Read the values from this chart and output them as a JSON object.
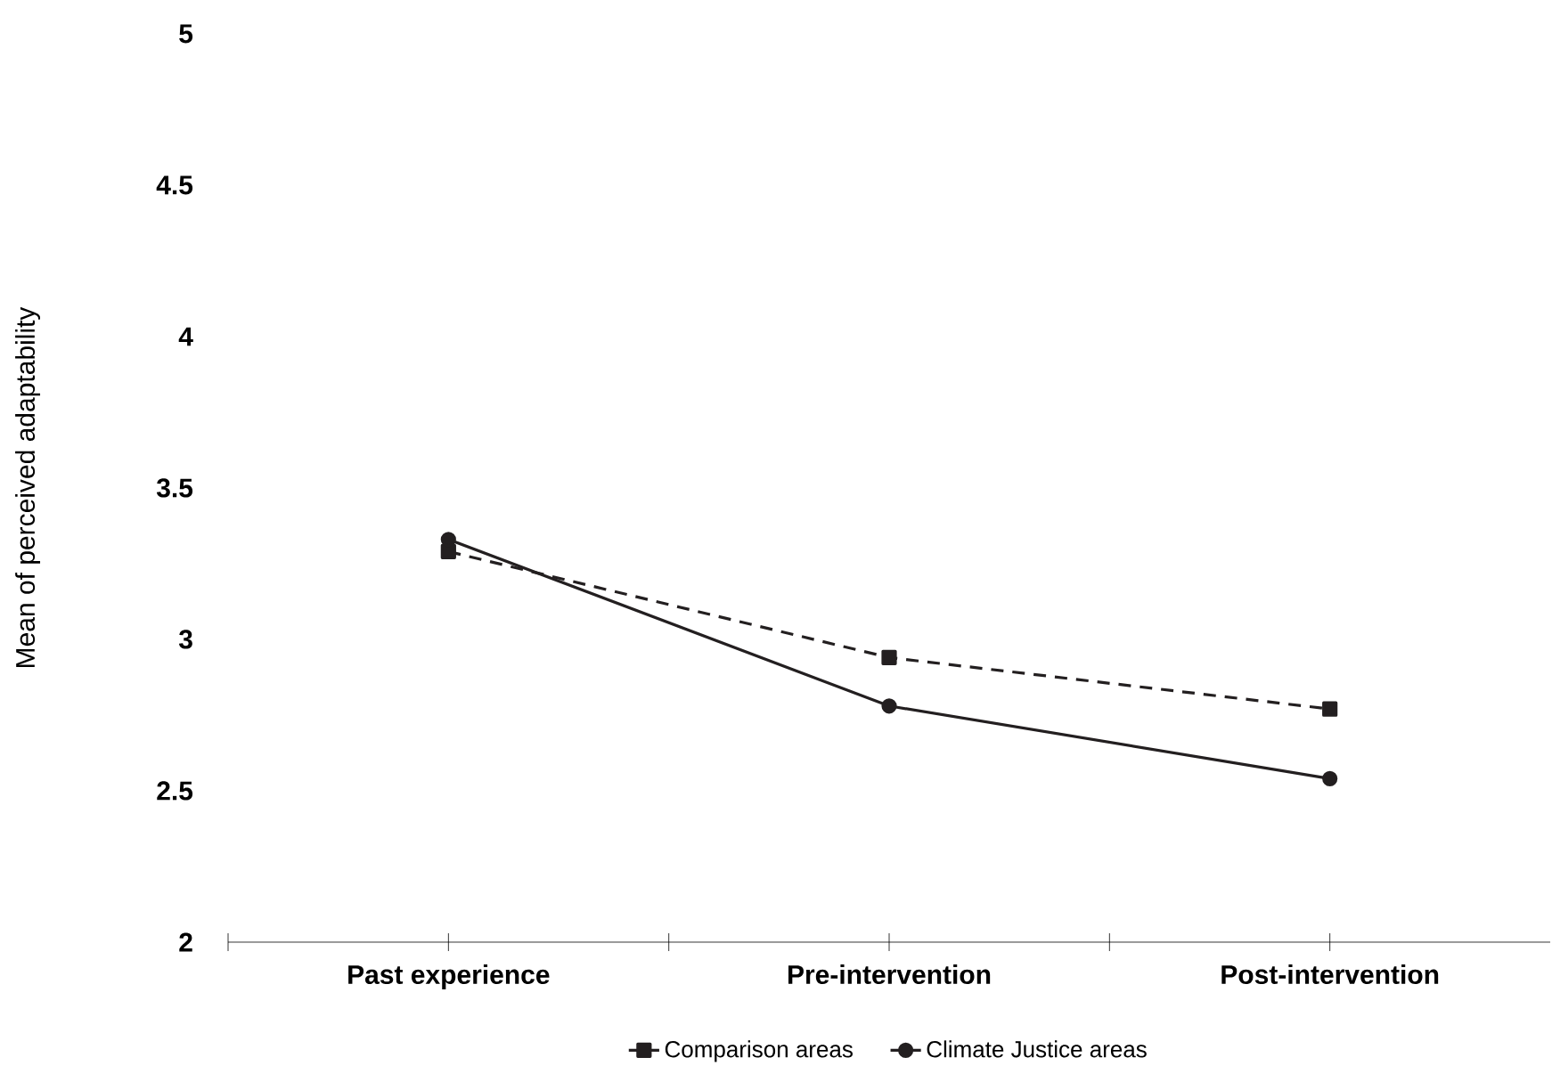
{
  "chart_data": {
    "type": "line",
    "ylabel": "Mean of perceived adaptability",
    "categories": [
      "Past experience",
      "Pre-intervention",
      "Post-intervention"
    ],
    "series": [
      {
        "name": "Comparison areas",
        "color": "#231f20",
        "values": [
          3.29,
          2.94,
          2.77
        ],
        "marker": "square",
        "line_style": "dashed"
      },
      {
        "name": "Climate Justice areas",
        "color": "#231f20",
        "values": [
          3.33,
          2.78,
          2.54
        ],
        "marker": "circle",
        "line_style": "solid"
      }
    ],
    "ylim": [
      2,
      5
    ],
    "yticks": [
      2,
      2.5,
      3,
      3.5,
      4,
      4.5,
      5
    ],
    "legend": "bottom"
  }
}
